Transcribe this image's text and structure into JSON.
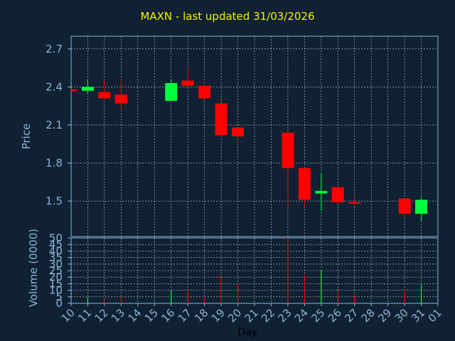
{
  "title": "MAXN - last updated 31/03/2026",
  "chart_data": [
    {
      "type": "candlestick",
      "ylabel": "Price",
      "ylim": [
        1.22,
        2.8
      ],
      "yticks": [
        "1.5",
        "1.8",
        "2.1",
        "2.4",
        "2.7"
      ],
      "grid": true,
      "colors": {
        "up": "#00ff3c",
        "down": "#ff0000",
        "background": "#0f2132",
        "grid": "#ffffff",
        "axis": "#8db4d6"
      },
      "candles": [
        {
          "day": "10",
          "open": 2.38,
          "high": 2.38,
          "low": 2.37,
          "close": 2.37
        },
        {
          "day": "11",
          "open": 2.37,
          "high": 2.46,
          "low": 2.35,
          "close": 2.4
        },
        {
          "day": "12",
          "open": 2.36,
          "high": 2.46,
          "low": 2.3,
          "close": 2.31
        },
        {
          "day": "13",
          "open": 2.34,
          "high": 2.46,
          "low": 2.22,
          "close": 2.27
        },
        {
          "day": "16",
          "open": 2.29,
          "high": 2.46,
          "low": 2.29,
          "close": 2.43
        },
        {
          "day": "17",
          "open": 2.45,
          "high": 2.55,
          "low": 2.4,
          "close": 2.41
        },
        {
          "day": "18",
          "open": 2.41,
          "high": 2.42,
          "low": 2.3,
          "close": 2.31
        },
        {
          "day": "19",
          "open": 2.27,
          "high": 2.27,
          "low": 2.01,
          "close": 2.02
        },
        {
          "day": "20",
          "open": 2.08,
          "high": 2.08,
          "low": 1.95,
          "close": 2.01
        },
        {
          "day": "23",
          "open": 2.04,
          "high": 2.04,
          "low": 1.44,
          "close": 1.76
        },
        {
          "day": "24",
          "open": 1.76,
          "high": 1.76,
          "low": 1.45,
          "close": 1.51
        },
        {
          "day": "25",
          "open": 1.56,
          "high": 1.72,
          "low": 1.42,
          "close": 1.58
        },
        {
          "day": "26",
          "open": 1.61,
          "high": 1.61,
          "low": 1.48,
          "close": 1.49
        },
        {
          "day": "27",
          "open": 1.49,
          "high": 1.54,
          "low": 1.46,
          "close": 1.48
        },
        {
          "day": "30",
          "open": 1.52,
          "high": 1.52,
          "low": 1.37,
          "close": 1.4
        },
        {
          "day": "31",
          "open": 1.4,
          "high": 1.53,
          "low": 1.34,
          "close": 1.51
        }
      ]
    },
    {
      "type": "bar",
      "xlabel": "Day",
      "ylabel": "Volume (0000)",
      "ylim": [
        0,
        50
      ],
      "yticks": [
        "0",
        "5",
        "10",
        "15",
        "20",
        "25",
        "30",
        "35",
        "40",
        "45",
        "50"
      ],
      "categories": [
        "10",
        "11",
        "12",
        "13",
        "14",
        "15",
        "16",
        "17",
        "18",
        "19",
        "20",
        "21",
        "22",
        "23",
        "24",
        "25",
        "26",
        "27",
        "28",
        "29",
        "30",
        "31",
        "01"
      ],
      "volumes": [
        {
          "day": "11",
          "value": 5,
          "direction": "up"
        },
        {
          "day": "12",
          "value": 3,
          "direction": "down"
        },
        {
          "day": "13",
          "value": 5,
          "direction": "down"
        },
        {
          "day": "16",
          "value": 10,
          "direction": "up"
        },
        {
          "day": "17",
          "value": 10,
          "direction": "down"
        },
        {
          "day": "18",
          "value": 4,
          "direction": "down"
        },
        {
          "day": "19",
          "value": 22,
          "direction": "down"
        },
        {
          "day": "20",
          "value": 15,
          "direction": "down"
        },
        {
          "day": "23",
          "value": 50,
          "direction": "down"
        },
        {
          "day": "24",
          "value": 22,
          "direction": "down"
        },
        {
          "day": "25",
          "value": 25,
          "direction": "up"
        },
        {
          "day": "26",
          "value": 10,
          "direction": "down"
        },
        {
          "day": "27",
          "value": 7,
          "direction": "down"
        },
        {
          "day": "30",
          "value": 10,
          "direction": "down"
        },
        {
          "day": "31",
          "value": 14,
          "direction": "up"
        }
      ]
    }
  ]
}
